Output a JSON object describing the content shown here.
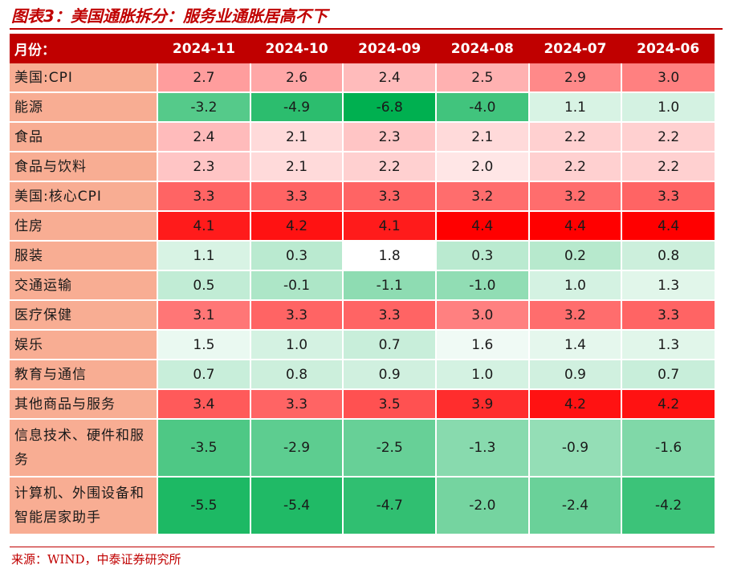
{
  "title": "图表3：美国通胀拆分：服务业通胀居高不下",
  "source": "来源：WIND，中泰证券研究所",
  "table": {
    "header_label": "月份：",
    "periods": [
      "2024-11",
      "2024-10",
      "2024-09",
      "2024-08",
      "2024-07",
      "2024-06"
    ],
    "rows": [
      {
        "label": "美国:CPI",
        "values": [
          "2.7",
          "2.6",
          "2.4",
          "2.5",
          "2.9",
          "3.0"
        ]
      },
      {
        "label": "能源",
        "values": [
          "-3.2",
          "-4.9",
          "-6.8",
          "-4.0",
          "1.1",
          "1.0"
        ]
      },
      {
        "label": "食品",
        "values": [
          "2.4",
          "2.1",
          "2.3",
          "2.1",
          "2.2",
          "2.2"
        ]
      },
      {
        "label": "食品与饮料",
        "values": [
          "2.3",
          "2.1",
          "2.2",
          "2.0",
          "2.2",
          "2.2"
        ]
      },
      {
        "label": "美国:核心CPI",
        "values": [
          "3.3",
          "3.3",
          "3.3",
          "3.2",
          "3.2",
          "3.3"
        ]
      },
      {
        "label": "住房",
        "values": [
          "4.1",
          "4.2",
          "4.1",
          "4.4",
          "4.4",
          "4.4"
        ]
      },
      {
        "label": "服装",
        "values": [
          "1.1",
          "0.3",
          "1.8",
          "0.3",
          "0.2",
          "0.8"
        ]
      },
      {
        "label": "交通运输",
        "values": [
          "0.5",
          "-0.1",
          "-1.1",
          "-1.0",
          "1.0",
          "1.3"
        ]
      },
      {
        "label": "医疗保健",
        "values": [
          "3.1",
          "3.3",
          "3.3",
          "3.0",
          "3.2",
          "3.3"
        ]
      },
      {
        "label": "娱乐",
        "values": [
          "1.5",
          "1.0",
          "0.7",
          "1.6",
          "1.4",
          "1.3"
        ]
      },
      {
        "label": "教育与通信",
        "values": [
          "0.7",
          "0.8",
          "0.9",
          "1.0",
          "0.9",
          "0.7"
        ]
      },
      {
        "label": "其他商品与服务",
        "values": [
          "3.4",
          "3.3",
          "3.5",
          "3.9",
          "4.2",
          "4.2"
        ]
      },
      {
        "label": "信息技术、硬件和服务",
        "values": [
          "-3.5",
          "-2.9",
          "-2.5",
          "-1.3",
          "-0.9",
          "-1.6"
        ]
      },
      {
        "label": "计算机、外围设备和智能居家助手",
        "values": [
          "-5.5",
          "-5.4",
          "-4.7",
          "-2.0",
          "-2.4",
          "-4.2"
        ]
      }
    ]
  },
  "colors": {
    "accent": "#c00000",
    "label_bg": "#f8ad93",
    "positive_max": "#ff0000",
    "negative_max": "#00b050",
    "neutral": "#ffffff"
  }
}
